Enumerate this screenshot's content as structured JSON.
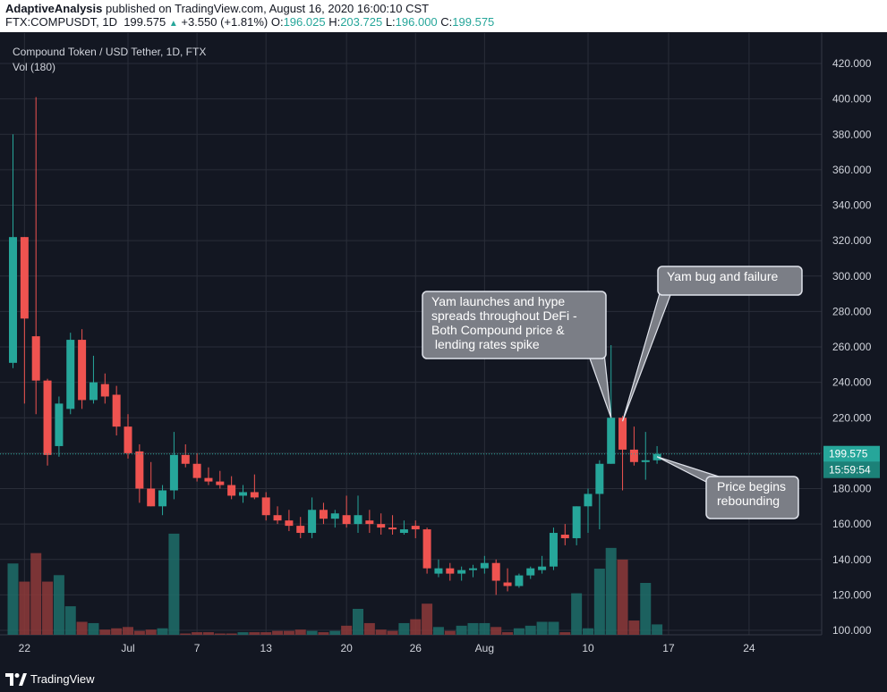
{
  "header": {
    "publisher": "AdaptiveAnalysis",
    "published_text": "published on TradingView.com, August 16, 2020 16:00:10 CST",
    "symbol": "FTX:COMPUSDT, 1D",
    "last": "199.575",
    "change": "+3.550 (+1.81%)",
    "o_label": "O:",
    "o_val": "196.025",
    "h_label": "H:",
    "h_val": "203.725",
    "l_label": "L:",
    "l_val": "196.000",
    "c_label": "C:",
    "c_val": "199.575"
  },
  "chart_title": "Compound Token / USD Tether, 1D, FTX",
  "volume_label": "Vol (180)",
  "footer": {
    "brand": "TradingView",
    "logo_icon": "tradingview-logo-icon"
  },
  "colors": {
    "up": "#26a69a",
    "down": "#ef5350",
    "background": "#131722",
    "grid": "#2a2e39"
  },
  "chart_data": {
    "type": "candlestick",
    "title": "Compound Token / USD Tether, 1D, FTX",
    "ylim": [
      90,
      430
    ],
    "y_ticks": [
      "100.000",
      "120.000",
      "140.000",
      "160.000",
      "180.000",
      "200.000",
      "220.000",
      "240.000",
      "260.000",
      "280.000",
      "300.000",
      "320.000",
      "340.000",
      "360.000",
      "380.000",
      "400.000",
      "420.000"
    ],
    "x_ticks": [
      {
        "label": "22",
        "index": 1
      },
      {
        "label": "Jul",
        "index": 10
      },
      {
        "label": "7",
        "index": 16
      },
      {
        "label": "13",
        "index": 22
      },
      {
        "label": "20",
        "index": 29
      },
      {
        "label": "26",
        "index": 35
      },
      {
        "label": "Aug",
        "index": 41
      },
      {
        "label": "10",
        "index": 50
      },
      {
        "label": "17",
        "index": 57
      },
      {
        "label": "24",
        "index": 64
      }
    ],
    "last_price": {
      "value": 199.575,
      "label": "199.575",
      "countdown": "15:59:54"
    },
    "annotations": [
      {
        "text": "Yam launches and hype spreads throughout DeFi - Both Compound price & lending rates spike",
        "target_index": 52,
        "target_value": 220
      },
      {
        "text": "Yam bug and failure",
        "target_index": 53,
        "target_value": 218
      },
      {
        "text": "Price begins rebounding",
        "target_index": 56,
        "target_value": 198
      }
    ],
    "candles": [
      {
        "o": 251,
        "h": 380,
        "l": 248,
        "c": 322,
        "v": 55
      },
      {
        "o": 322,
        "h": 322,
        "l": 228,
        "c": 276,
        "v": 41
      },
      {
        "o": 266,
        "h": 401,
        "l": 222,
        "c": 241,
        "v": 63
      },
      {
        "o": 241,
        "h": 242,
        "l": 193,
        "c": 199,
        "v": 41
      },
      {
        "o": 204,
        "h": 232,
        "l": 198,
        "c": 228,
        "v": 46
      },
      {
        "o": 225,
        "h": 268,
        "l": 222,
        "c": 264,
        "v": 22
      },
      {
        "o": 264,
        "h": 270,
        "l": 225,
        "c": 230,
        "v": 10
      },
      {
        "o": 230,
        "h": 255,
        "l": 228,
        "c": 240,
        "v": 9
      },
      {
        "o": 239,
        "h": 245,
        "l": 228,
        "c": 232,
        "v": 4
      },
      {
        "o": 233,
        "h": 238,
        "l": 210,
        "c": 215,
        "v": 5
      },
      {
        "o": 215,
        "h": 222,
        "l": 197,
        "c": 200,
        "v": 6
      },
      {
        "o": 201,
        "h": 205,
        "l": 172,
        "c": 180,
        "v": 3
      },
      {
        "o": 180,
        "h": 195,
        "l": 170,
        "c": 170,
        "v": 4
      },
      {
        "o": 170,
        "h": 182,
        "l": 165,
        "c": 179,
        "v": 5
      },
      {
        "o": 179,
        "h": 212,
        "l": 174,
        "c": 199,
        "v": 78
      },
      {
        "o": 199,
        "h": 205,
        "l": 192,
        "c": 194,
        "v": 1
      },
      {
        "o": 194,
        "h": 200,
        "l": 184,
        "c": 186,
        "v": 2
      },
      {
        "o": 186,
        "h": 192,
        "l": 182,
        "c": 184,
        "v": 2
      },
      {
        "o": 184,
        "h": 190,
        "l": 180,
        "c": 182,
        "v": 1
      },
      {
        "o": 182,
        "h": 187,
        "l": 174,
        "c": 176,
        "v": 1
      },
      {
        "o": 176,
        "h": 182,
        "l": 172,
        "c": 178,
        "v": 2
      },
      {
        "o": 178,
        "h": 188,
        "l": 174,
        "c": 175,
        "v": 2
      },
      {
        "o": 175,
        "h": 178,
        "l": 162,
        "c": 165,
        "v": 2
      },
      {
        "o": 165,
        "h": 170,
        "l": 160,
        "c": 162,
        "v": 3
      },
      {
        "o": 162,
        "h": 168,
        "l": 156,
        "c": 159,
        "v": 3
      },
      {
        "o": 159,
        "h": 164,
        "l": 152,
        "c": 155,
        "v": 4
      },
      {
        "o": 155,
        "h": 175,
        "l": 152,
        "c": 168,
        "v": 3
      },
      {
        "o": 168,
        "h": 172,
        "l": 160,
        "c": 163,
        "v": 2
      },
      {
        "o": 163,
        "h": 168,
        "l": 158,
        "c": 166,
        "v": 3
      },
      {
        "o": 165,
        "h": 176,
        "l": 158,
        "c": 160,
        "v": 7
      },
      {
        "o": 160,
        "h": 176,
        "l": 155,
        "c": 165,
        "v": 20
      },
      {
        "o": 162,
        "h": 168,
        "l": 155,
        "c": 160,
        "v": 9
      },
      {
        "o": 160,
        "h": 166,
        "l": 154,
        "c": 158,
        "v": 4
      },
      {
        "o": 158,
        "h": 165,
        "l": 154,
        "c": 157,
        "v": 3
      },
      {
        "o": 155,
        "h": 162,
        "l": 154,
        "c": 157,
        "v": 9
      },
      {
        "o": 159,
        "h": 162,
        "l": 152,
        "c": 157,
        "v": 12
      },
      {
        "o": 157,
        "h": 158,
        "l": 132,
        "c": 135,
        "v": 24
      },
      {
        "o": 132,
        "h": 140,
        "l": 130,
        "c": 135,
        "v": 6
      },
      {
        "o": 135,
        "h": 138,
        "l": 128,
        "c": 132,
        "v": 3
      },
      {
        "o": 132,
        "h": 136,
        "l": 128,
        "c": 134,
        "v": 7
      },
      {
        "o": 134,
        "h": 137,
        "l": 130,
        "c": 135,
        "v": 9
      },
      {
        "o": 135,
        "h": 142,
        "l": 132,
        "c": 138,
        "v": 9
      },
      {
        "o": 138,
        "h": 140,
        "l": 120,
        "c": 128,
        "v": 6
      },
      {
        "o": 127,
        "h": 135,
        "l": 122,
        "c": 125,
        "v": 2
      },
      {
        "o": 125,
        "h": 132,
        "l": 124,
        "c": 131,
        "v": 5
      },
      {
        "o": 131,
        "h": 136,
        "l": 129,
        "c": 135,
        "v": 7
      },
      {
        "o": 134,
        "h": 142,
        "l": 132,
        "c": 136,
        "v": 10
      },
      {
        "o": 136,
        "h": 158,
        "l": 134,
        "c": 155,
        "v": 10
      },
      {
        "o": 154,
        "h": 160,
        "l": 148,
        "c": 152,
        "v": 2
      },
      {
        "o": 152,
        "h": 170,
        "l": 148,
        "c": 170,
        "v": 32
      },
      {
        "o": 170,
        "h": 180,
        "l": 155,
        "c": 177,
        "v": 5
      },
      {
        "o": 177,
        "h": 196,
        "l": 157,
        "c": 194,
        "v": 51
      },
      {
        "o": 194,
        "h": 261,
        "l": 194,
        "c": 220,
        "v": 67
      },
      {
        "o": 220,
        "h": 221,
        "l": 179,
        "c": 202,
        "v": 58
      },
      {
        "o": 202,
        "h": 215,
        "l": 193,
        "c": 195,
        "v": 11
      },
      {
        "o": 195,
        "h": 212,
        "l": 185,
        "c": 196,
        "v": 40
      },
      {
        "o": 196,
        "h": 204,
        "l": 194,
        "c": 199.575,
        "v": 8
      }
    ]
  }
}
